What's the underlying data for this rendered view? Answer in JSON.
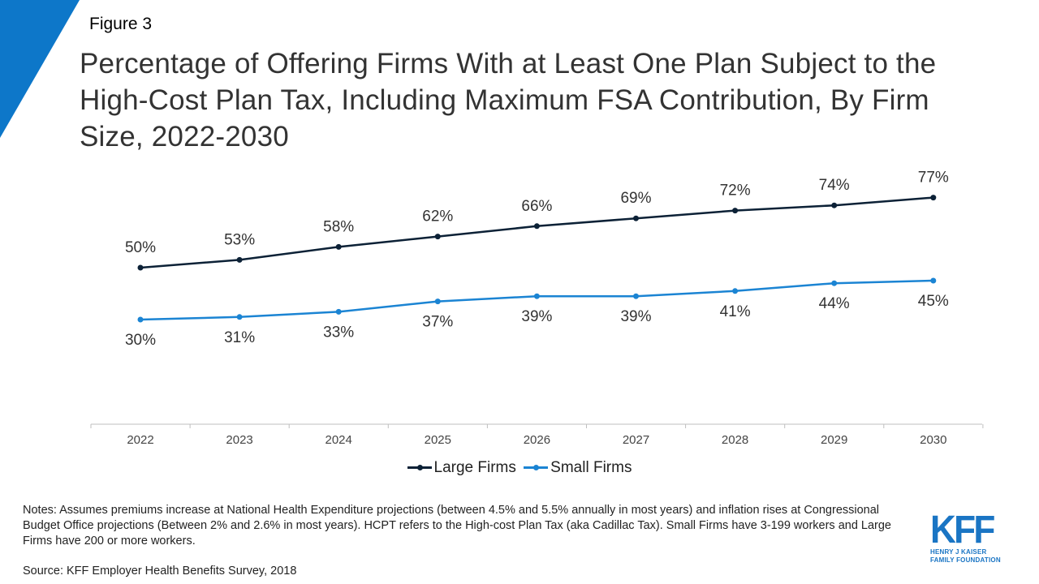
{
  "figure_label": "Figure 3",
  "title": "Percentage of Offering Firms With at Least One Plan Subject to the High-Cost Plan Tax, Including Maximum FSA Contribution, By Firm Size,  2022-2030",
  "colors": {
    "corner": "#0d77c9",
    "large": "#0c2136",
    "small": "#1b84d3",
    "axis": "#bfbfbf",
    "logo": "#1a75c4"
  },
  "chart_data": {
    "type": "line",
    "x": [
      "2022",
      "2023",
      "2024",
      "2025",
      "2026",
      "2027",
      "2028",
      "2029",
      "2030"
    ],
    "ylim": [
      0,
      100
    ],
    "series": [
      {
        "name": "Large Firms",
        "values": [
          50,
          53,
          58,
          62,
          66,
          69,
          72,
          74,
          77
        ],
        "labels": [
          "50%",
          "53%",
          "58%",
          "62%",
          "66%",
          "69%",
          "72%",
          "74%",
          "77%"
        ],
        "label_position": "above"
      },
      {
        "name": "Small Firms",
        "values": [
          30,
          31,
          33,
          37,
          39,
          39,
          41,
          44,
          45
        ],
        "labels": [
          "30%",
          "31%",
          "33%",
          "37%",
          "39%",
          "39%",
          "41%",
          "44%",
          "45%"
        ],
        "label_position": "below"
      }
    ],
    "legend_position": "bottom-center",
    "grid": false
  },
  "legend": {
    "large": "Large Firms",
    "small": "Small Firms"
  },
  "notes": "Notes: Assumes premiums increase at National Health Expenditure projections (between 4.5% and 5.5% annually  in most years) and inflation rises at Congressional Budget Office projections (Between 2% and 2.6% in most years). HCPT refers to the High-cost Plan Tax (aka Cadillac Tax). Small Firms have 3-199 workers and Large Firms have 200 or more workers.",
  "source": "Source: KFF Employer Health Benefits Survey, 2018",
  "logo": {
    "mark": "KFF",
    "line1": "HENRY J KAISER",
    "line2": "FAMILY FOUNDATION"
  }
}
